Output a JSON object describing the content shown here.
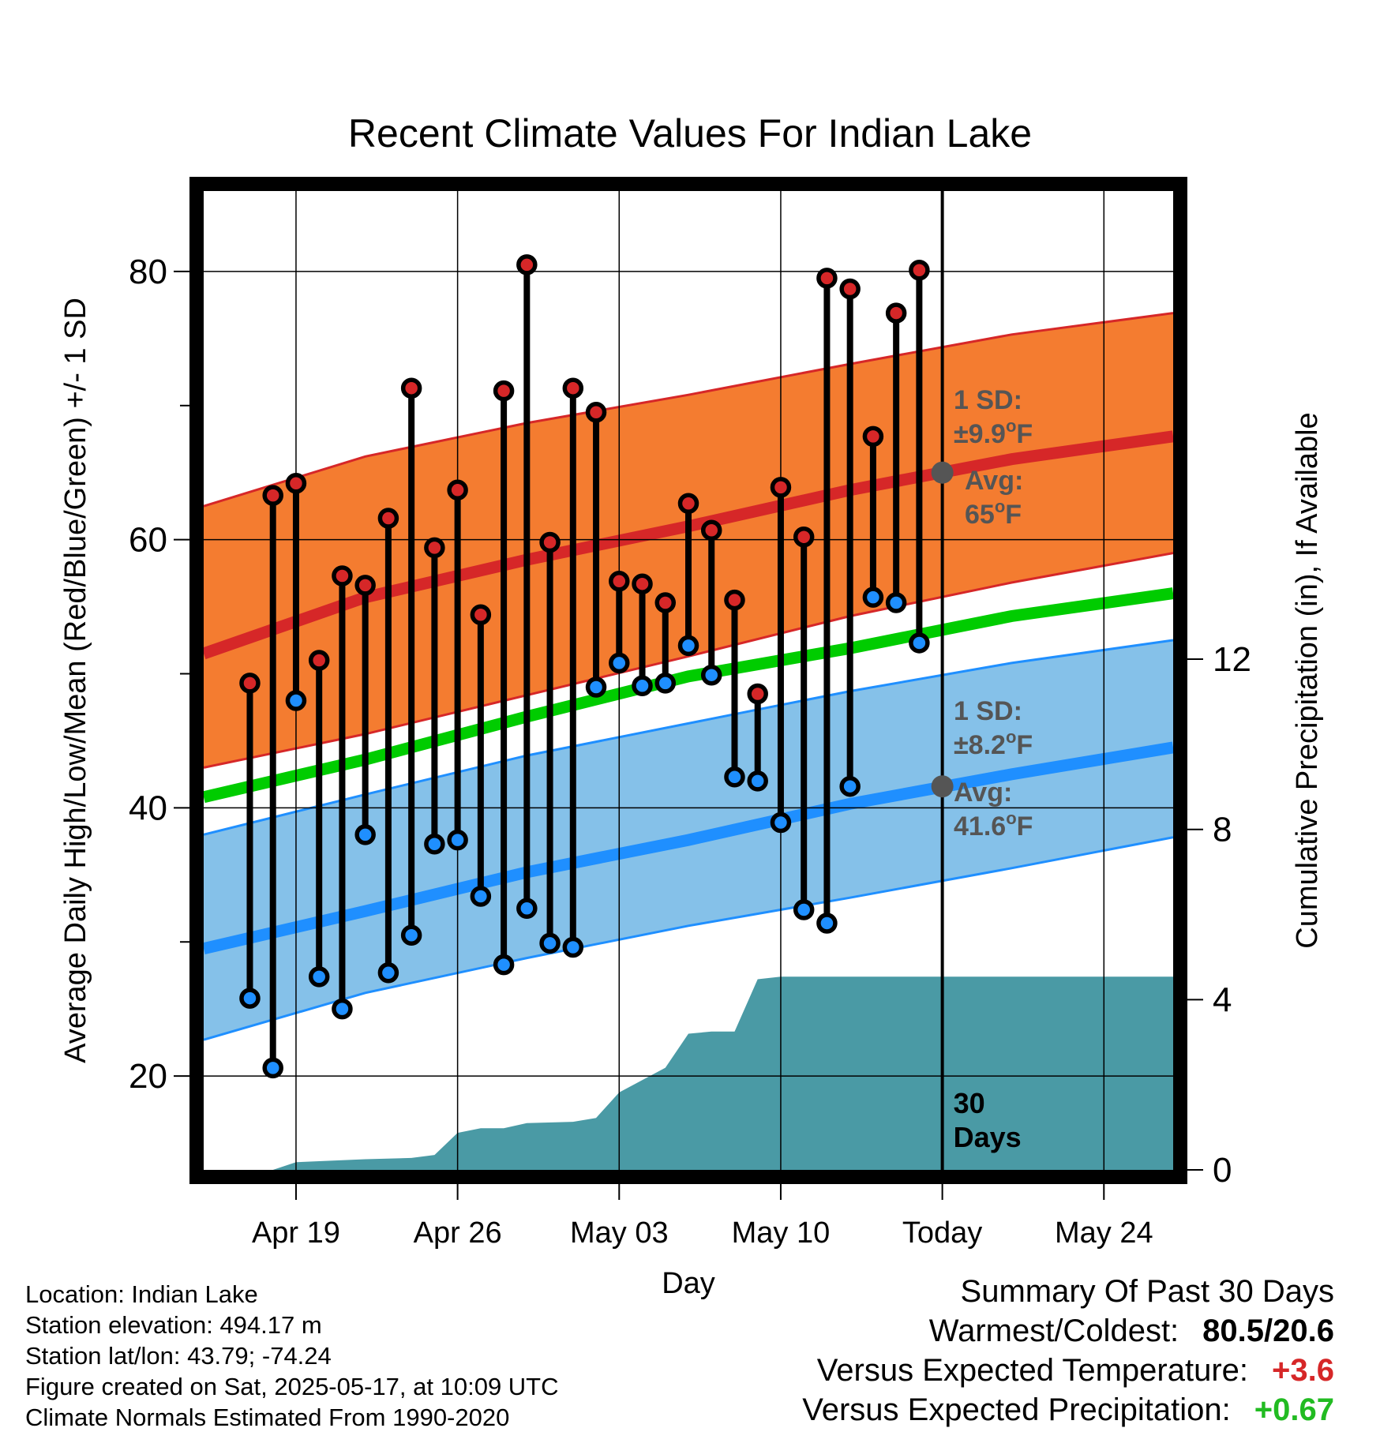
{
  "title": "Recent Climate Values For Indian Lake",
  "info": {
    "location": "Location: Indian Lake",
    "elevation": "Station elevation: 494.17 m",
    "latlon": "Station lat/lon: 43.79; -74.24",
    "created": "Figure created on Sat, 2025-05-17, at 10:09 UTC",
    "normals": "Climate Normals Estimated From 1990-2020"
  },
  "summary": {
    "heading": "Summary Of Past 30 Days",
    "warmest_label": "Warmest/Coldest:",
    "warmest_value": "80.5/20.6",
    "temp_label": "Versus Expected Temperature:",
    "temp_value": "+3.6",
    "precip_label": "Versus Expected Precipitation:",
    "precip_value": "+0.67"
  },
  "colors": {
    "high_marker": "#d62728",
    "low_marker": "#1f8fff",
    "high_band": "#f47c30",
    "high_avg": "#d62728",
    "low_band": "#85c1e9",
    "low_avg": "#1f8fff",
    "mean_line": "#00cc00",
    "precip": "#4a9aa5",
    "annotation": "#555555",
    "summary_temp": "#d62728",
    "summary_precip": "#22bb22"
  },
  "chart_data": {
    "type": "line",
    "title": "Recent Climate Values For Indian Lake",
    "xlabel": "Day",
    "ylabel": "Average Daily High/Low/Mean (Red/Blue/Green) +/- 1 SD",
    "y2label": "Cumulative Precipitation (in), If Available",
    "xlim": [
      "2025-04-15",
      "2025-05-27"
    ],
    "ylim": [
      13,
      86
    ],
    "y2lim": [
      0,
      23
    ],
    "x_ticks": [
      {
        "date": "2025-04-19",
        "label": "Apr 19"
      },
      {
        "date": "2025-04-26",
        "label": "Apr 26"
      },
      {
        "date": "2025-05-03",
        "label": "May 03"
      },
      {
        "date": "2025-05-10",
        "label": "May 10"
      },
      {
        "date": "2025-05-17",
        "label": "Today"
      },
      {
        "date": "2025-05-24",
        "label": "May 24"
      }
    ],
    "y_ticks": [
      20,
      40,
      60,
      80
    ],
    "y_minor_ticks": [
      30,
      50,
      70
    ],
    "y2_ticks": [
      0,
      4,
      8,
      12
    ],
    "today": "2025-05-17",
    "days_window_label": "30 Days",
    "observations": [
      {
        "date": "2025-04-17",
        "high": 49.3,
        "low": 25.8
      },
      {
        "date": "2025-04-18",
        "high": 63.3,
        "low": 20.6
      },
      {
        "date": "2025-04-19",
        "high": 64.2,
        "low": 48.0
      },
      {
        "date": "2025-04-20",
        "high": 51.0,
        "low": 27.4
      },
      {
        "date": "2025-04-21",
        "high": 57.3,
        "low": 25.0
      },
      {
        "date": "2025-04-22",
        "high": 56.6,
        "low": 38.0
      },
      {
        "date": "2025-04-23",
        "high": 61.6,
        "low": 27.7
      },
      {
        "date": "2025-04-24",
        "high": 71.3,
        "low": 30.5
      },
      {
        "date": "2025-04-25",
        "high": 59.4,
        "low": 37.3
      },
      {
        "date": "2025-04-26",
        "high": 63.7,
        "low": 37.6
      },
      {
        "date": "2025-04-27",
        "high": 54.4,
        "low": 33.4
      },
      {
        "date": "2025-04-28",
        "high": 71.1,
        "low": 28.3
      },
      {
        "date": "2025-04-29",
        "high": 80.5,
        "low": 32.5
      },
      {
        "date": "2025-04-30",
        "high": 59.8,
        "low": 29.9
      },
      {
        "date": "2025-05-01",
        "high": 71.3,
        "low": 29.6
      },
      {
        "date": "2025-05-02",
        "high": 69.5,
        "low": 49.0
      },
      {
        "date": "2025-05-03",
        "high": 56.9,
        "low": 50.8
      },
      {
        "date": "2025-05-04",
        "high": 56.7,
        "low": 49.1
      },
      {
        "date": "2025-05-05",
        "high": 55.3,
        "low": 49.3
      },
      {
        "date": "2025-05-06",
        "high": 62.7,
        "low": 52.1
      },
      {
        "date": "2025-05-07",
        "high": 60.7,
        "low": 49.9
      },
      {
        "date": "2025-05-08",
        "high": 55.5,
        "low": 42.3
      },
      {
        "date": "2025-05-09",
        "high": 48.5,
        "low": 42.0
      },
      {
        "date": "2025-05-10",
        "high": 63.9,
        "low": 38.9
      },
      {
        "date": "2025-05-11",
        "high": 60.2,
        "low": 32.4
      },
      {
        "date": "2025-05-12",
        "high": 79.5,
        "low": 31.4
      },
      {
        "date": "2025-05-13",
        "high": 78.7,
        "low": 41.6
      },
      {
        "date": "2025-05-14",
        "high": 67.7,
        "low": 55.7
      },
      {
        "date": "2025-05-15",
        "high": 76.9,
        "low": 55.3
      },
      {
        "date": "2025-05-16",
        "high": 80.1,
        "low": 52.3
      }
    ],
    "normals": {
      "dates": [
        "2025-04-15",
        "2025-04-22",
        "2025-04-29",
        "2025-05-06",
        "2025-05-13",
        "2025-05-20",
        "2025-05-27"
      ],
      "high_avg": [
        51.5,
        55.7,
        58.5,
        61.0,
        63.7,
        66.0,
        67.7
      ],
      "high_upper": [
        62.5,
        66.2,
        68.7,
        70.8,
        73.1,
        75.3,
        76.9
      ],
      "high_lower": [
        43.0,
        45.5,
        48.4,
        51.3,
        54.3,
        56.8,
        59.0
      ],
      "mean": [
        40.8,
        43.6,
        46.8,
        49.8,
        51.9,
        54.3,
        56.0
      ],
      "low_avg": [
        29.5,
        32.3,
        35.2,
        37.6,
        40.3,
        42.5,
        44.5
      ],
      "low_upper": [
        38.0,
        41.0,
        43.9,
        46.3,
        48.7,
        50.8,
        52.5
      ],
      "low_lower": [
        22.7,
        26.2,
        28.8,
        31.2,
        33.3,
        35.5,
        37.8
      ]
    },
    "precip_cumulative": {
      "dates": [
        "2025-04-17",
        "2025-04-18",
        "2025-04-19",
        "2025-04-22",
        "2025-04-24",
        "2025-04-25",
        "2025-04-26",
        "2025-04-27",
        "2025-04-28",
        "2025-04-29",
        "2025-05-01",
        "2025-05-02",
        "2025-05-03",
        "2025-05-05",
        "2025-05-06",
        "2025-05-07",
        "2025-05-08",
        "2025-05-09",
        "2025-05-10",
        "2025-05-27"
      ],
      "values": [
        0.0,
        0.0,
        0.18,
        0.25,
        0.28,
        0.35,
        0.87,
        0.98,
        0.98,
        1.1,
        1.13,
        1.22,
        1.82,
        2.4,
        3.2,
        3.25,
        3.25,
        4.48,
        4.54,
        4.54
      ]
    },
    "annotations": {
      "high_sd_label": "1 SD:",
      "high_sd_value": "±9.9",
      "high_avg_label": "Avg:",
      "high_avg_value": "65",
      "high_avg_point": 65.0,
      "low_sd_label": "1 SD:",
      "low_sd_value": "±8.2",
      "low_avg_label": "Avg:",
      "low_avg_value": "41.6",
      "low_avg_point": 41.6,
      "unit_sup": "o",
      "unit_letter": "F"
    }
  }
}
